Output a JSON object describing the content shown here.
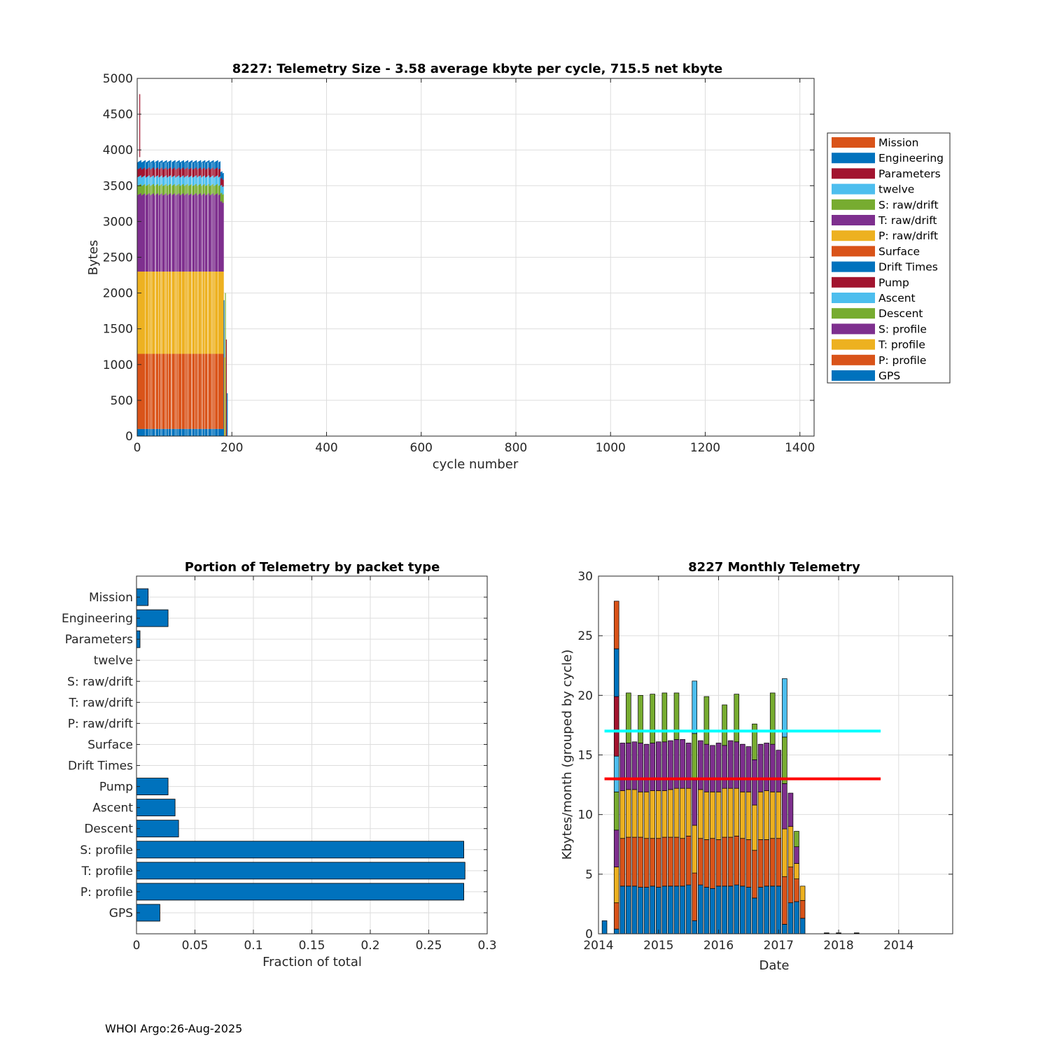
{
  "footer": "WHOI Argo:26-Aug-2025",
  "colors": {
    "blue": "#0072BD",
    "orange": "#D95319",
    "yellow": "#EDB120",
    "purple": "#7E2F8E",
    "green": "#77AC30",
    "cyan": "#4DBEEE",
    "darkred": "#A2142F",
    "grid": "#dddddd",
    "axis": "#262626",
    "line_cyan": "#00FFFF",
    "line_red": "#FF0000"
  },
  "chart_data": [
    {
      "type": "area",
      "title": "8227: Telemetry Size - 3.58 average kbyte per cycle,  715.5 net kbyte",
      "xlabel": "cycle number",
      "ylabel": "Bytes",
      "xlim": [
        0,
        1430
      ],
      "ylim": [
        0,
        5000
      ],
      "xticks": [
        0,
        200,
        400,
        600,
        800,
        1000,
        1200,
        1400
      ],
      "yticks": [
        0,
        500,
        1000,
        1500,
        2000,
        2500,
        3000,
        3500,
        4000,
        4500,
        5000
      ],
      "legend": [
        "Mission",
        "Engineering",
        "Parameters",
        "twelve",
        "S: raw/drift",
        "T: raw/drift",
        "P: raw/drift",
        "Surface",
        "Drift Times",
        "Pump",
        "Ascent",
        "Descent",
        "S: profile",
        "T: profile",
        "P: profile",
        "GPS"
      ],
      "legend_colors": [
        "#D95319",
        "#0072BD",
        "#A2142F",
        "#4DBEEE",
        "#77AC30",
        "#7E2F8E",
        "#EDB120",
        "#D95319",
        "#0072BD",
        "#A2142F",
        "#4DBEEE",
        "#77AC30",
        "#7E2F8E",
        "#EDB120",
        "#D95319",
        "#0072BD"
      ],
      "stack_order": [
        "GPS",
        "P: profile",
        "T: profile",
        "S: profile",
        "Descent",
        "Ascent",
        "Pump",
        "Engineering"
      ],
      "stack_colors": [
        "#0072BD",
        "#D95319",
        "#EDB120",
        "#7E2F8E",
        "#77AC30",
        "#4DBEEE",
        "#A2142F",
        "#0072BD"
      ],
      "typical_layers": [
        100,
        1050,
        1150,
        1080,
        130,
        120,
        110,
        100
      ],
      "cycle_range": [
        1,
        182
      ],
      "peak": {
        "cycle": 5,
        "bytes": 4780
      },
      "tail_bars": [
        {
          "cycle": 183,
          "bytes": 1900
        },
        {
          "cycle": 184,
          "bytes": 1100
        },
        {
          "cycle": 186,
          "bytes": 2000
        },
        {
          "cycle": 188,
          "bytes": 1350
        },
        {
          "cycle": 190,
          "bytes": 600
        }
      ]
    },
    {
      "type": "bar",
      "orientation": "horizontal",
      "title": "Portion of Telemetry by packet type",
      "xlabel": "Fraction of total",
      "xlim": [
        0,
        0.3
      ],
      "xticks": [
        0,
        0.05,
        0.1,
        0.15,
        0.2,
        0.25,
        0.3
      ],
      "xtick_labels": [
        "0",
        "0.05",
        "0.1",
        "0.15",
        "0.2",
        "0.25",
        "0.3"
      ],
      "categories": [
        "Mission",
        "Engineering",
        "Parameters",
        "twelve",
        "S: raw/drift",
        "T: raw/drift",
        "P: raw/drift",
        "Surface",
        "Drift Times",
        "Pump",
        "Ascent",
        "Descent",
        "S: profile",
        "T: profile",
        "P: profile",
        "GPS"
      ],
      "values": [
        0.01,
        0.027,
        0.003,
        0,
        0,
        0,
        0,
        0,
        0,
        0.027,
        0.033,
        0.036,
        0.28,
        0.281,
        0.28,
        0.02
      ]
    },
    {
      "type": "bar",
      "stacked": true,
      "title": "8227 Monthly Telemetry",
      "xlabel": "Date",
      "ylabel": "Kbytes/month (grouped by cycle)",
      "ylim": [
        0,
        30
      ],
      "yticks": [
        0,
        5,
        10,
        15,
        20,
        25,
        30
      ],
      "xlim": [
        0,
        59
      ],
      "xtick_positions": [
        0,
        10,
        20,
        30,
        40,
        50
      ],
      "xtick_labels": [
        "2014",
        "2015",
        "2016",
        "2017",
        "2018",
        "2014"
      ],
      "series_colors": [
        "#0072BD",
        "#D95319",
        "#EDB120",
        "#7E2F8E",
        "#77AC30",
        "#4DBEEE",
        "#A2142F",
        "#0072BD",
        "#D95319"
      ],
      "bars": [
        {
          "month": 1,
          "segments": [
            1.1
          ]
        },
        {
          "month": 3,
          "segments": [
            0.4,
            2.2,
            3.0,
            3.1,
            3.2,
            3.0,
            5.0,
            4.0,
            4.0
          ]
        },
        {
          "month": 4,
          "segments": [
            4.0,
            4.0,
            4.0,
            4.0
          ]
        },
        {
          "month": 5,
          "segments": [
            4.0,
            4.1,
            4.0,
            3.9,
            4.2
          ]
        },
        {
          "month": 6,
          "segments": [
            4.0,
            4.1,
            4.0,
            4.0
          ]
        },
        {
          "month": 7,
          "segments": [
            3.9,
            4.2,
            3.8,
            4.1,
            4.0
          ]
        },
        {
          "month": 8,
          "segments": [
            3.9,
            4.1,
            3.9,
            4.0
          ]
        },
        {
          "month": 9,
          "segments": [
            4.0,
            4.0,
            4.0,
            4.0,
            4.1
          ]
        },
        {
          "month": 10,
          "segments": [
            3.9,
            4.1,
            4.0,
            4.1
          ]
        },
        {
          "month": 11,
          "segments": [
            4.0,
            4.1,
            3.9,
            4.1,
            4.1
          ]
        },
        {
          "month": 12,
          "segments": [
            4.0,
            4.1,
            4.0,
            4.1
          ]
        },
        {
          "month": 13,
          "segments": [
            4.0,
            4.1,
            4.1,
            4.1,
            3.9
          ]
        },
        {
          "month": 14,
          "segments": [
            4.0,
            4.0,
            4.2,
            4.1
          ]
        },
        {
          "month": 15,
          "segments": [
            4.1,
            4.1,
            4.0,
            3.8
          ]
        },
        {
          "month": 16,
          "segments": [
            1.1,
            4.0,
            4.0,
            3.8,
            3.9,
            4.4
          ]
        },
        {
          "month": 17,
          "segments": [
            4.1,
            3.9,
            4.1,
            4.1
          ]
        },
        {
          "month": 18,
          "segments": [
            3.9,
            4.0,
            4.0,
            4.0,
            4.0
          ]
        },
        {
          "month": 19,
          "segments": [
            3.8,
            4.2,
            3.9,
            3.9
          ]
        },
        {
          "month": 20,
          "segments": [
            4.0,
            3.9,
            4.0,
            4.1
          ]
        },
        {
          "month": 21,
          "segments": [
            4.0,
            4.1,
            4.1,
            3.6,
            3.4
          ]
        },
        {
          "month": 22,
          "segments": [
            4.0,
            4.1,
            4.1,
            4.0
          ]
        },
        {
          "month": 23,
          "segments": [
            4.1,
            4.1,
            4.0,
            3.9,
            4.0
          ]
        },
        {
          "month": 24,
          "segments": [
            4.0,
            4.0,
            3.9,
            4.0
          ]
        },
        {
          "month": 25,
          "segments": [
            3.9,
            4.0,
            4.0,
            3.8
          ]
        },
        {
          "month": 26,
          "segments": [
            3.0,
            4.0,
            3.8,
            3.8,
            3.0
          ]
        },
        {
          "month": 27,
          "segments": [
            3.9,
            4.0,
            4.0,
            4.0
          ]
        },
        {
          "month": 28,
          "segments": [
            4.0,
            3.9,
            4.1,
            4.0
          ]
        },
        {
          "month": 29,
          "segments": [
            4.0,
            4.0,
            3.9,
            4.0,
            4.3
          ]
        },
        {
          "month": 30,
          "segments": [
            4.0,
            4.0,
            3.9,
            3.5
          ]
        },
        {
          "month": 31,
          "segments": [
            0.8,
            4.0,
            4.0,
            3.8,
            3.9,
            4.9
          ]
        },
        {
          "month": 32,
          "segments": [
            2.6,
            3.0,
            3.4,
            2.8
          ]
        },
        {
          "month": 33,
          "segments": [
            2.7,
            1.9,
            1.3,
            1.4,
            1.3
          ]
        },
        {
          "month": 34,
          "segments": [
            1.3,
            1.5,
            1.2
          ]
        },
        {
          "month": 38,
          "segments": [
            0.08
          ]
        },
        {
          "month": 40,
          "segments": [
            0.08
          ]
        },
        {
          "month": 43,
          "segments": [
            0.08
          ]
        }
      ],
      "hlines": [
        {
          "y": 17,
          "color": "#00FFFF",
          "x0": 1,
          "x1": 47
        },
        {
          "y": 13,
          "color": "#FF0000",
          "x0": 1,
          "x1": 47
        }
      ]
    }
  ]
}
